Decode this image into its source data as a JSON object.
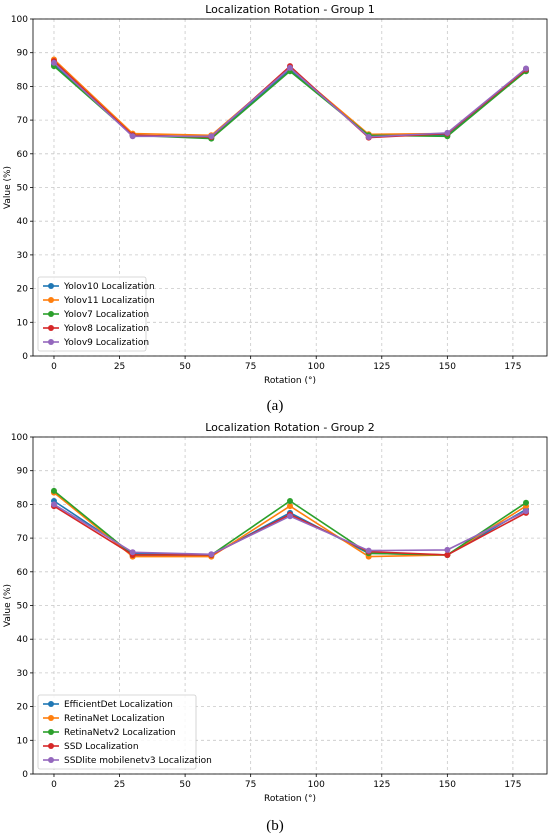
{
  "chart_data": [
    {
      "type": "line",
      "title": "Localization Rotation - Group 1",
      "xlabel": "Rotation (°)",
      "ylabel": "Value (%)",
      "xlim": [
        -8,
        188
      ],
      "ylim": [
        0,
        100
      ],
      "x": [
        0,
        30,
        60,
        90,
        120,
        150,
        180
      ],
      "xticks": [
        0,
        25,
        50,
        75,
        100,
        125,
        150,
        175
      ],
      "yticks": [
        0,
        10,
        20,
        30,
        40,
        50,
        60,
        70,
        80,
        90,
        100
      ],
      "grid": true,
      "legend_position": "lower-left",
      "series": [
        {
          "name": "Yolov10 Localization",
          "color": "#1f77b4",
          "values": [
            86.5,
            65.5,
            65.0,
            85.0,
            65.5,
            65.5,
            84.8
          ]
        },
        {
          "name": "Yolov11 Localization",
          "color": "#ff7f0e",
          "values": [
            88.0,
            66.0,
            65.5,
            85.5,
            65.8,
            66.0,
            85.2
          ]
        },
        {
          "name": "Yolov7 Localization",
          "color": "#2ca02c",
          "values": [
            86.0,
            65.5,
            64.5,
            84.5,
            65.5,
            65.2,
            84.5
          ]
        },
        {
          "name": "Yolov8  Localization",
          "color": "#d62728",
          "values": [
            87.5,
            65.5,
            65.0,
            86.0,
            64.8,
            66.0,
            85.0
          ]
        },
        {
          "name": "Yolov9 Localization",
          "color": "#9467bd",
          "values": [
            87.0,
            65.2,
            65.2,
            85.5,
            65.0,
            66.2,
            85.3
          ]
        }
      ]
    },
    {
      "type": "line",
      "title": "Localization Rotation - Group 2",
      "xlabel": "Rotation (°)",
      "ylabel": "Value (%)",
      "xlim": [
        -8,
        188
      ],
      "ylim": [
        0,
        100
      ],
      "x": [
        0,
        30,
        60,
        90,
        120,
        150,
        180
      ],
      "xticks": [
        0,
        25,
        50,
        75,
        100,
        125,
        150,
        175
      ],
      "yticks": [
        0,
        10,
        20,
        30,
        40,
        50,
        60,
        70,
        80,
        90,
        100
      ],
      "grid": true,
      "legend_position": "lower-left",
      "series": [
        {
          "name": "EfficientDet Localization",
          "color": "#1f77b4",
          "values": [
            81.0,
            65.5,
            65.0,
            77.5,
            65.5,
            65.0,
            78.5
          ]
        },
        {
          "name": "RetinaNet Localization",
          "color": "#ff7f0e",
          "values": [
            83.5,
            64.5,
            64.5,
            79.5,
            64.5,
            65.0,
            79.5
          ]
        },
        {
          "name": "RetinaNetv2 Localization",
          "color": "#2ca02c",
          "values": [
            84.0,
            65.0,
            65.0,
            81.0,
            65.5,
            65.0,
            80.5
          ]
        },
        {
          "name": "SSD Localization",
          "color": "#d62728",
          "values": [
            79.5,
            65.0,
            65.0,
            77.0,
            66.0,
            65.0,
            77.5
          ]
        },
        {
          "name": "SSDlite  mobilenetv3 Localization",
          "color": "#9467bd",
          "values": [
            80.0,
            65.8,
            65.2,
            76.5,
            66.3,
            66.5,
            78.0
          ]
        }
      ]
    }
  ],
  "captions": {
    "a": "(a)",
    "b": "(b)"
  }
}
